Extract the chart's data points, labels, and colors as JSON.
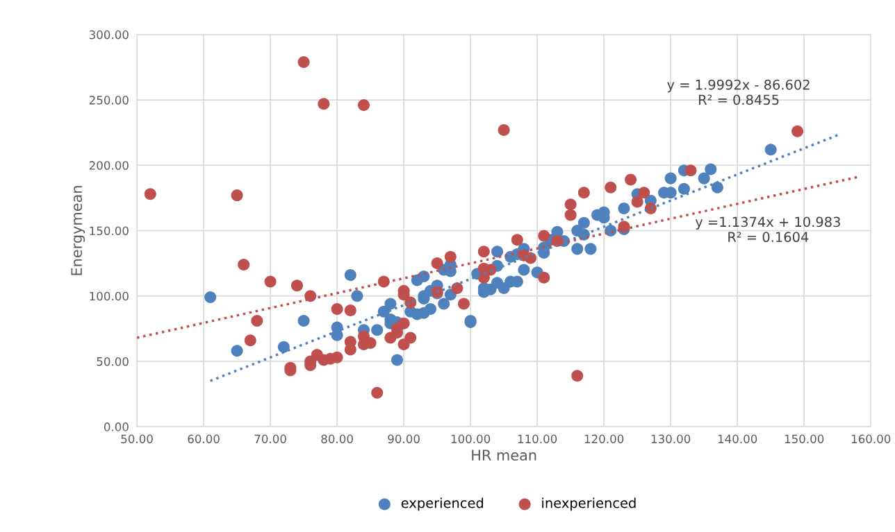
{
  "chart_data": {
    "type": "scatter",
    "xlabel": "HR mean",
    "ylabel": "Energymean",
    "xlim": [
      50,
      160
    ],
    "ylim": [
      0,
      300
    ],
    "xticks": [
      {
        "value": 50,
        "label": "50.00"
      },
      {
        "value": 60,
        "label": "60.00"
      },
      {
        "value": 70,
        "label": "70.00"
      },
      {
        "value": 80,
        "label": "80.00"
      },
      {
        "value": 90,
        "label": "90.00"
      },
      {
        "value": 100,
        "label": "100.00"
      },
      {
        "value": 110,
        "label": "110.00"
      },
      {
        "value": 120,
        "label": "120.00"
      },
      {
        "value": 130,
        "label": "130.00"
      },
      {
        "value": 140,
        "label": "140.00"
      },
      {
        "value": 150,
        "label": "150.00"
      },
      {
        "value": 160,
        "label": "160.00"
      }
    ],
    "yticks": [
      {
        "value": 0,
        "label": "0.00"
      },
      {
        "value": 50,
        "label": "50.00"
      },
      {
        "value": 100,
        "label": "100.00"
      },
      {
        "value": 150,
        "label": "150.00"
      },
      {
        "value": 200,
        "label": "200.00"
      },
      {
        "value": 250,
        "label": "250.00"
      },
      {
        "value": 300,
        "label": "300.00"
      }
    ],
    "grid": true,
    "legend": "bottom",
    "marker": "circle",
    "series": [
      {
        "name": "experienced",
        "color": "#4f81bd",
        "x": [
          61,
          65,
          72,
          75,
          80,
          80,
          82,
          83,
          84,
          86,
          87,
          88,
          88,
          88,
          89,
          89,
          91,
          92,
          92,
          93,
          93,
          93,
          93,
          94,
          94,
          95,
          95,
          96,
          96,
          97,
          97,
          97,
          100,
          100,
          101,
          102,
          102,
          103,
          104,
          104,
          104,
          105,
          106,
          106,
          107,
          107,
          108,
          108,
          110,
          111,
          111,
          112,
          113,
          114,
          116,
          116,
          117,
          117,
          118,
          119,
          120,
          120,
          121,
          123,
          123,
          125,
          127,
          129,
          130,
          130,
          132,
          132,
          135,
          136,
          137,
          145
        ],
        "values": [
          99,
          58,
          61,
          81,
          76,
          70,
          116,
          100,
          74,
          74,
          88,
          94,
          82,
          79,
          51,
          80,
          88,
          86,
          112,
          87,
          98,
          100,
          115,
          90,
          104,
          108,
          102,
          94,
          120,
          124,
          119,
          101,
          81,
          80,
          117,
          103,
          106,
          105,
          110,
          134,
          123,
          106,
          111,
          130,
          111,
          132,
          136,
          120,
          118,
          133,
          137,
          143,
          149,
          142,
          150,
          136,
          156,
          147,
          136,
          162,
          164,
          160,
          150,
          167,
          151,
          178,
          173,
          179,
          179,
          190,
          196,
          182,
          190,
          197,
          183,
          212
        ]
      },
      {
        "name": "inexperienced",
        "color": "#c0504d",
        "x": [
          52,
          65,
          66,
          67,
          68,
          70,
          73,
          73,
          74,
          75,
          76,
          76,
          76,
          77,
          78,
          78,
          79,
          80,
          80,
          82,
          82,
          82,
          84,
          84,
          84,
          85,
          86,
          87,
          88,
          89,
          89,
          90,
          90,
          90,
          90,
          91,
          91,
          95,
          95,
          97,
          98,
          99,
          102,
          102,
          102,
          103,
          105,
          107,
          108,
          109,
          111,
          111,
          113,
          115,
          115,
          116,
          117,
          121,
          123,
          124,
          125,
          126,
          127,
          133,
          149
        ],
        "values": [
          178,
          177,
          124,
          66,
          81,
          111,
          45,
          43,
          108,
          279,
          100,
          50,
          47,
          55,
          247,
          51,
          52,
          53,
          90,
          89,
          65,
          59,
          246,
          69,
          63,
          64,
          26,
          111,
          68,
          72,
          75,
          104,
          101,
          79,
          63,
          95,
          68,
          125,
          103,
          130,
          106,
          94,
          134,
          121,
          114,
          120,
          227,
          143,
          131,
          129,
          146,
          114,
          142,
          170,
          162,
          39,
          179,
          183,
          153,
          189,
          172,
          179,
          167,
          196,
          226
        ]
      },
      {
        "type": "line",
        "line_style": "dotted",
        "marker": "none",
        "color": "#4f81bd",
        "x": [
          61,
          155
        ],
        "values": [
          35,
          223
        ]
      },
      {
        "type": "line",
        "line_style": "dotted",
        "marker": "none",
        "color": "#c0504d",
        "x": [
          50,
          158
        ],
        "values": [
          68,
          191
        ]
      }
    ],
    "annotations": [
      "y = 1.9992x - 86.602\nR² = 0.8455",
      "y =1.1374x + 10.983\nR² = 0.1604"
    ]
  }
}
